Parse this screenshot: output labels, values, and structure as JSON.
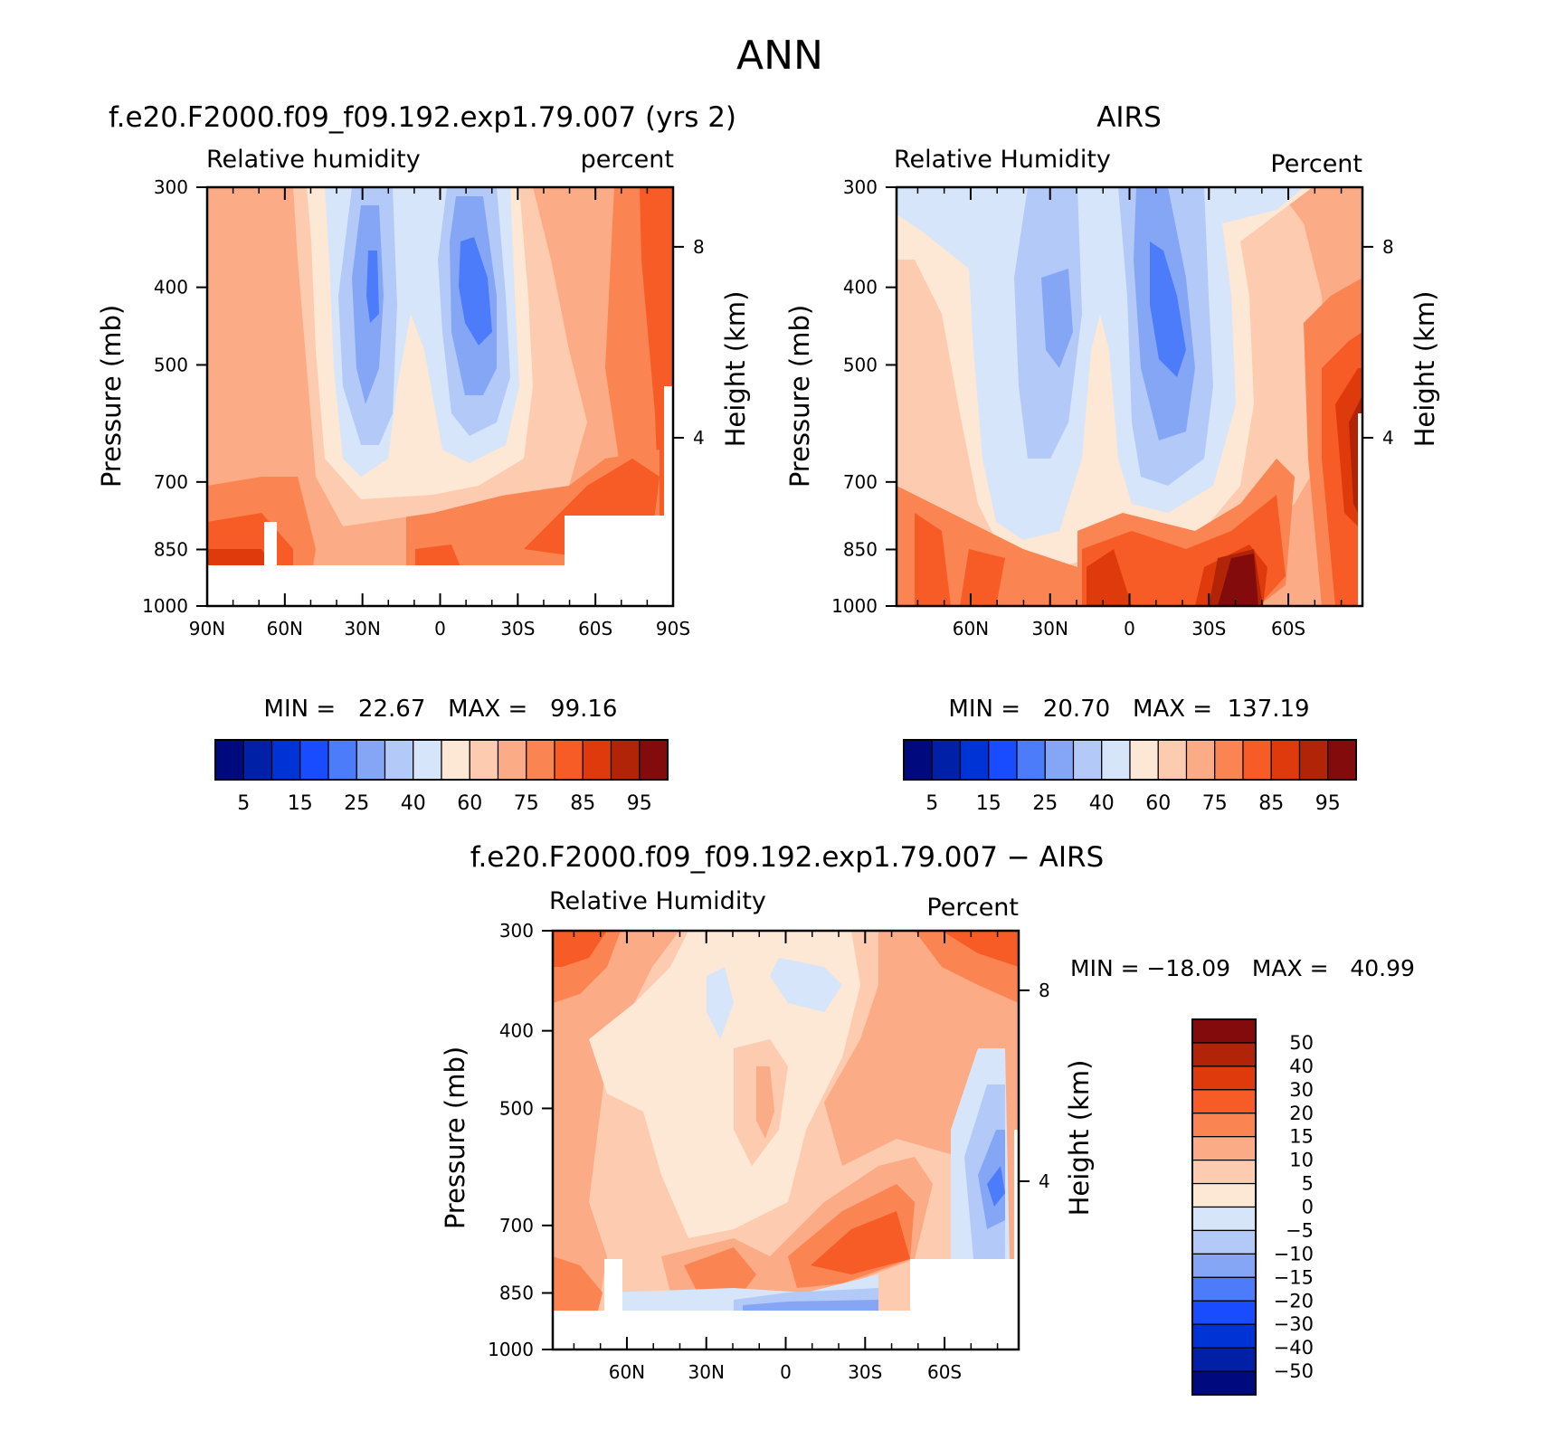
{
  "title": "ANN",
  "chart_data": [
    {
      "type": "contour",
      "title": "f.e20.F2000.f09_f09.192.exp1.79.007 (yrs 2)",
      "left_string": "Relative humidity",
      "right_string": "percent",
      "xlabel": "",
      "ylabel": "Pressure (mb)",
      "ylabel_right": "Height (km)",
      "x_ticks": [
        "90N",
        "60N",
        "30N",
        "0",
        "30S",
        "60S",
        "90S"
      ],
      "x_tick_lats": [
        90,
        60,
        30,
        0,
        -30,
        -60,
        -90
      ],
      "xlim": [
        90,
        -90
      ],
      "y_ticks": [
        "300",
        "400",
        "500",
        "700",
        "850",
        "1000"
      ],
      "y_tick_values": [
        300,
        400,
        500,
        700,
        850,
        1000
      ],
      "ylim": [
        300,
        1000
      ],
      "height_ticks": [
        "8",
        "4"
      ],
      "height_values": [
        8,
        4
      ],
      "stats_text": "MIN =   22.67   MAX =   99.16",
      "min": 22.67,
      "max": 99.16,
      "colorbar_labels": [
        "5",
        "15",
        "25",
        "40",
        "60",
        "75",
        "85",
        "95"
      ],
      "contour_levels": [
        5,
        10,
        15,
        20,
        25,
        30,
        40,
        50,
        60,
        70,
        75,
        80,
        85,
        90,
        95
      ]
    },
    {
      "type": "contour",
      "title": "AIRS",
      "left_string": "Relative Humidity",
      "right_string": "Percent",
      "xlabel": "",
      "ylabel": "Pressure (mb)",
      "ylabel_right": "Height (km)",
      "x_ticks": [
        "60N",
        "30N",
        "0",
        "30S",
        "60S"
      ],
      "x_tick_lats": [
        60,
        30,
        0,
        -30,
        -60
      ],
      "xlim": [
        88,
        -88
      ],
      "y_ticks": [
        "300",
        "400",
        "500",
        "700",
        "850",
        "1000"
      ],
      "y_tick_values": [
        300,
        400,
        500,
        700,
        850,
        1000
      ],
      "ylim": [
        300,
        1000
      ],
      "height_ticks": [
        "8",
        "4"
      ],
      "height_values": [
        8,
        4
      ],
      "stats_text": "MIN =   20.70   MAX =  137.19",
      "min": 20.7,
      "max": 137.19,
      "colorbar_labels": [
        "5",
        "15",
        "25",
        "40",
        "60",
        "75",
        "85",
        "95"
      ],
      "contour_levels": [
        5,
        10,
        15,
        20,
        25,
        30,
        40,
        50,
        60,
        70,
        75,
        80,
        85,
        90,
        95
      ]
    },
    {
      "type": "contour",
      "title": "f.e20.F2000.f09_f09.192.exp1.79.007 − AIRS",
      "left_string": "Relative Humidity",
      "right_string": "Percent",
      "xlabel": "",
      "ylabel": "Pressure (mb)",
      "ylabel_right": "Height (km)",
      "x_ticks": [
        "60N",
        "30N",
        "0",
        "30S",
        "60S"
      ],
      "x_tick_lats": [
        60,
        30,
        0,
        -30,
        -60
      ],
      "xlim": [
        88,
        -88
      ],
      "y_ticks": [
        "300",
        "400",
        "500",
        "700",
        "850",
        "1000"
      ],
      "y_tick_values": [
        300,
        400,
        500,
        700,
        850,
        1000
      ],
      "ylim": [
        300,
        1000
      ],
      "height_ticks": [
        "8",
        "4"
      ],
      "height_values": [
        8,
        4
      ],
      "stats_text": "MIN = −18.09   MAX =   40.99",
      "min": -18.09,
      "max": 40.99,
      "colorbar_labels": [
        "50",
        "40",
        "30",
        "20",
        "15",
        "10",
        "5",
        "0",
        "−5",
        "−10",
        "−15",
        "−20",
        "−30",
        "−40",
        "−50"
      ],
      "contour_levels": [
        -50,
        -40,
        -30,
        -20,
        -15,
        -10,
        -5,
        0,
        5,
        10,
        15,
        20,
        30,
        40,
        50
      ]
    }
  ],
  "colors": {
    "abs_palette": [
      "#000a7f",
      "#0020a8",
      "#0033d6",
      "#1a4cff",
      "#4d7cfa",
      "#85a6f5",
      "#b3c9f7",
      "#d6e5fa",
      "#fde7d5",
      "#fccbb0",
      "#fbab85",
      "#fa8452",
      "#f75b26",
      "#de3a0b",
      "#b22408",
      "#840b0b"
    ],
    "diff_palette": [
      "#000a7f",
      "#0020a8",
      "#0033d6",
      "#1a4cff",
      "#4d7cfa",
      "#85a6f5",
      "#b3c9f7",
      "#d6e5fa",
      "#fde7d5",
      "#fccbb0",
      "#fbab85",
      "#fa8452",
      "#f75b26",
      "#de3a0b",
      "#b22408",
      "#840b0b"
    ]
  }
}
